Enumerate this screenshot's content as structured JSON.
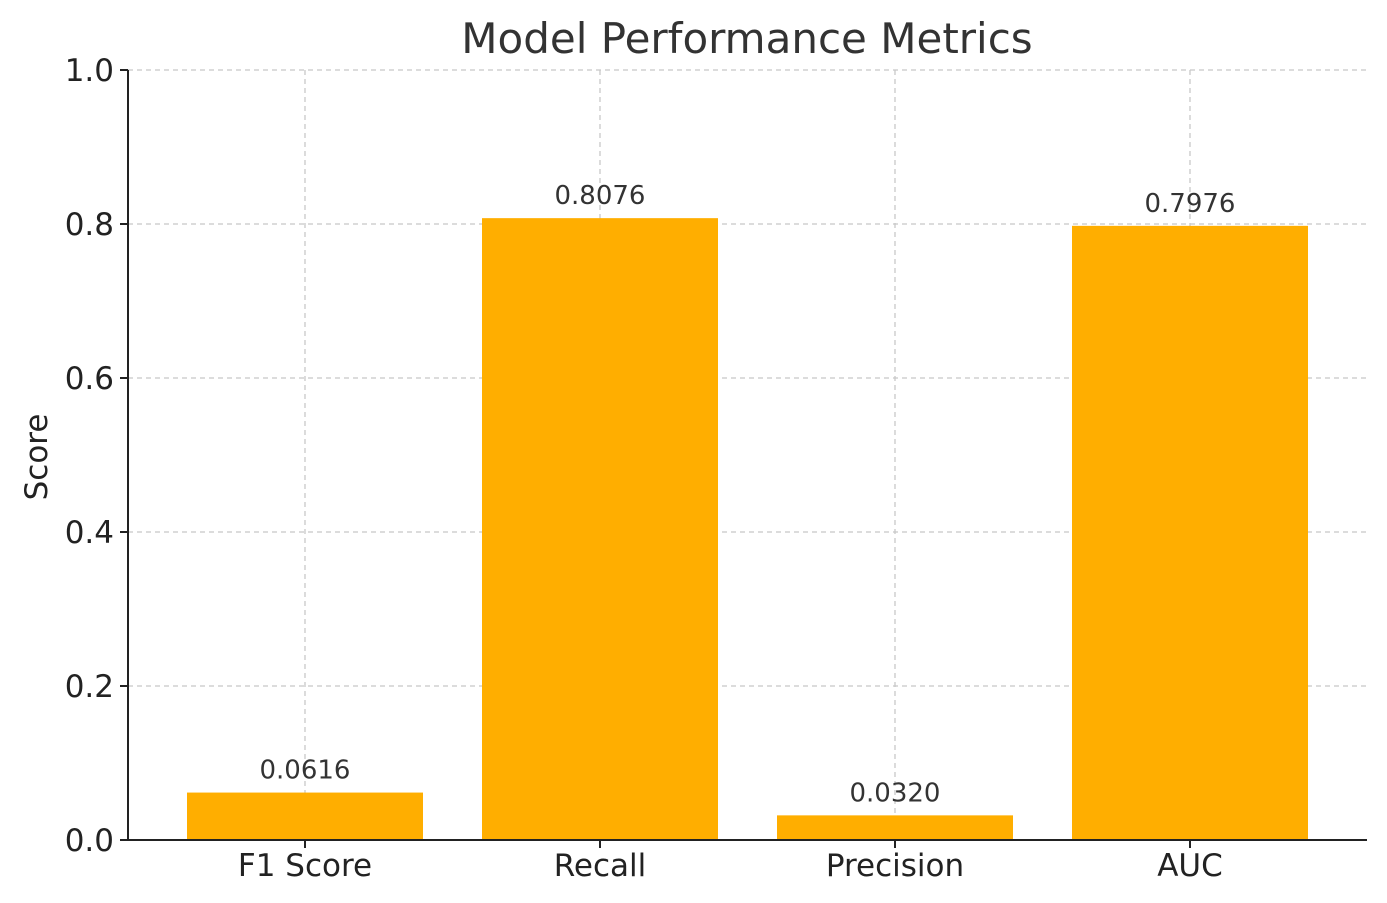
{
  "chart_data": {
    "type": "bar",
    "title": "Model Performance Metrics",
    "xlabel": "",
    "ylabel": "Score",
    "categories": [
      "F1 Score",
      "Recall",
      "Precision",
      "AUC"
    ],
    "values": [
      0.0616,
      0.8076,
      0.032,
      0.7976
    ],
    "value_labels": [
      "0.0616",
      "0.8076",
      "0.0320",
      "0.7976"
    ],
    "ylim": [
      0,
      1.0
    ],
    "yticks": [
      0.0,
      0.2,
      0.4,
      0.6,
      0.8,
      1.0
    ],
    "ytick_labels": [
      "0.0",
      "0.2",
      "0.4",
      "0.6",
      "0.8",
      "1.0"
    ],
    "grid": true,
    "bar_color": "#FFAE00"
  }
}
